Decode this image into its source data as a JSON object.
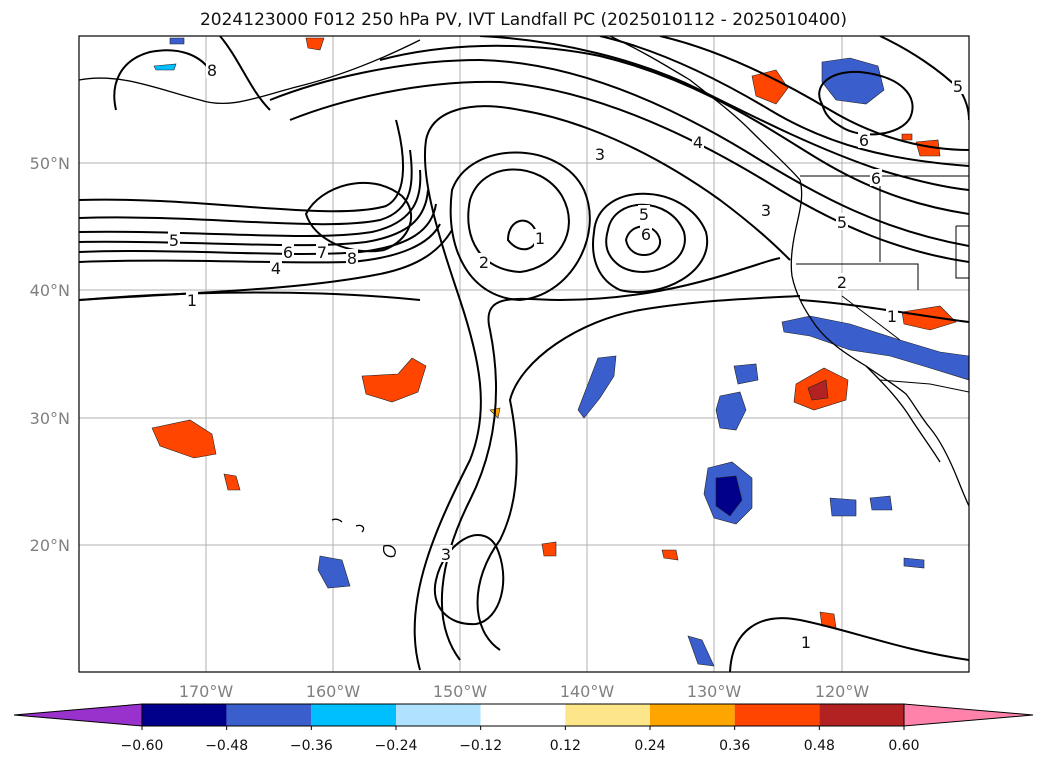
{
  "title": "2024123000 F012 250 hPa PV, IVT Landfall PC (2025010112 - 2025010400)",
  "map": {
    "lon_range": [
      -180,
      -110
    ],
    "lat_range": [
      10,
      60
    ],
    "lon_ticks": [
      "170°W",
      "160°W",
      "150°W",
      "140°W",
      "130°W",
      "120°W"
    ],
    "lat_ticks": [
      "50°N",
      "40°N",
      "30°N",
      "20°N"
    ],
    "grid": true,
    "coastlines": true,
    "borders": true
  },
  "colorbar": {
    "orientation": "horizontal",
    "extend": "both",
    "bounds": [
      -0.72,
      -0.6,
      -0.48,
      -0.36,
      -0.24,
      -0.12,
      0.12,
      0.24,
      0.36,
      0.48,
      0.6,
      0.72
    ],
    "colors": [
      "#9932cc",
      "#00008b",
      "#3a5fcd",
      "#00bfff",
      "#b0e2ff",
      "#ffffff",
      "#fde68a",
      "#ffa500",
      "#ff4500",
      "#b22222",
      "#ff82ab"
    ],
    "tick_labels": [
      "−0.60",
      "−0.48",
      "−0.36",
      "−0.24",
      "−0.12",
      "0.12",
      "0.24",
      "0.36",
      "0.48",
      "0.60"
    ]
  },
  "contour_labels": [
    "8",
    "5",
    "6",
    "7",
    "8",
    "4",
    "1",
    "3",
    "1",
    "2",
    "5",
    "6",
    "4",
    "3",
    "5",
    "6",
    "5",
    "6",
    "2",
    "1",
    "3",
    "1"
  ]
}
